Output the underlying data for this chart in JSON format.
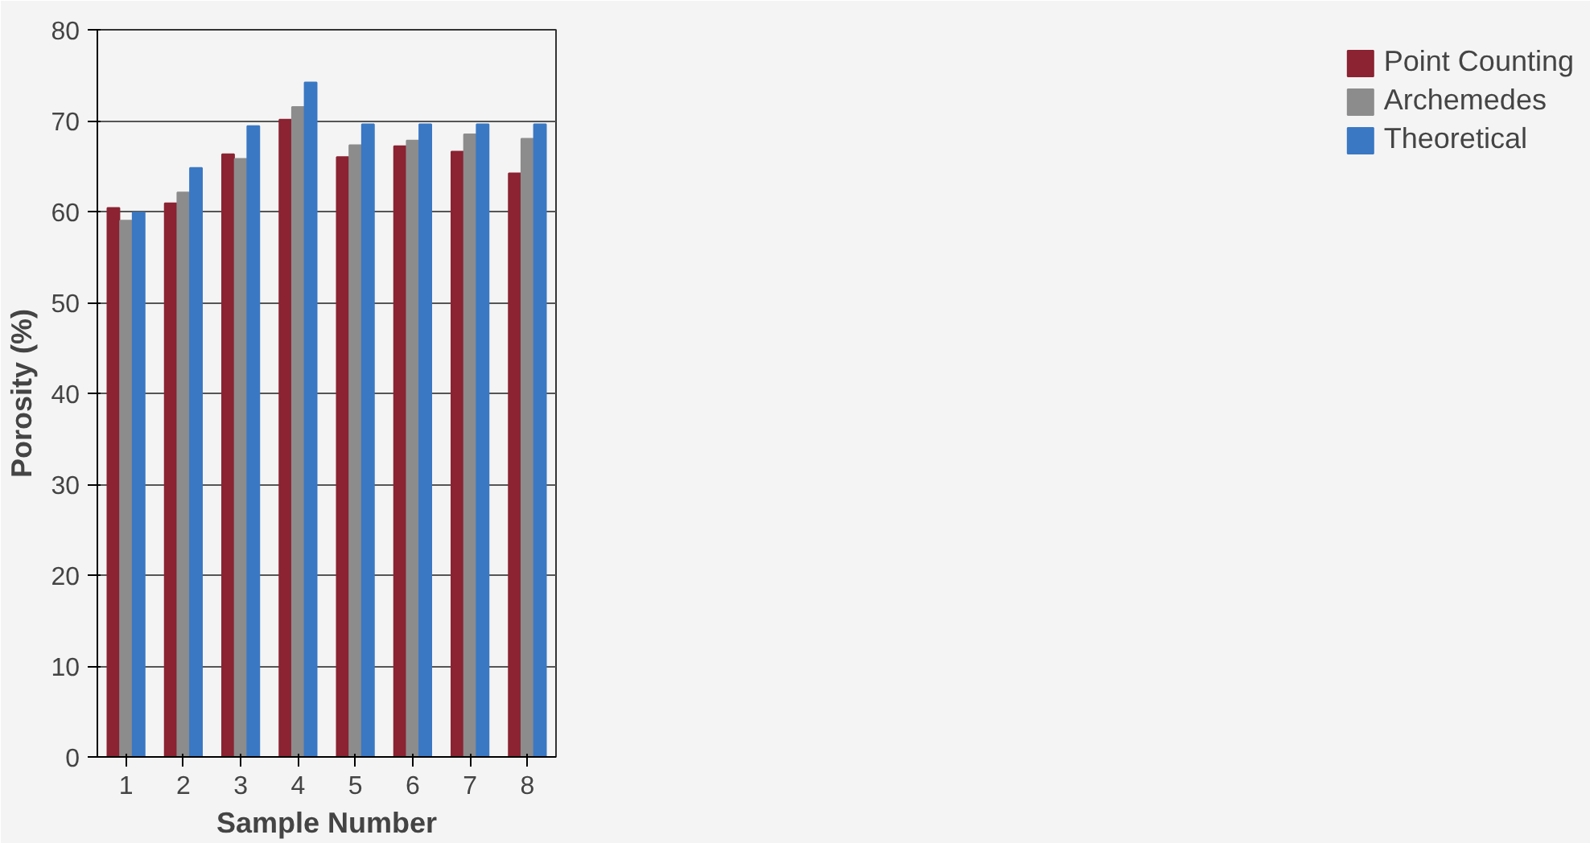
{
  "chart_data": {
    "type": "bar",
    "xlabel": "Sample Number",
    "ylabel": "Porosity (%)",
    "categories": [
      "1",
      "2",
      "3",
      "4",
      "5",
      "6",
      "7",
      "8"
    ],
    "series": [
      {
        "name": "Point Counting",
        "color": "#8b2332",
        "values": [
          60.4,
          60.9,
          66.3,
          70.1,
          66.0,
          67.2,
          66.6,
          64.2
        ]
      },
      {
        "name": "Archemedes",
        "color": "#8c8c8c",
        "values": [
          59.0,
          62.1,
          65.8,
          71.5,
          67.3,
          67.8,
          68.5,
          68.0
        ]
      },
      {
        "name": "Theoretical",
        "color": "#3a78c4",
        "values": [
          59.9,
          64.8,
          69.4,
          74.2,
          69.6,
          69.6,
          69.6,
          69.6
        ]
      }
    ],
    "ylim": [
      0,
      80
    ],
    "yticks": [
      0,
      10,
      20,
      30,
      40,
      50,
      60,
      70,
      80
    ],
    "grid": "y",
    "legend": "right"
  }
}
